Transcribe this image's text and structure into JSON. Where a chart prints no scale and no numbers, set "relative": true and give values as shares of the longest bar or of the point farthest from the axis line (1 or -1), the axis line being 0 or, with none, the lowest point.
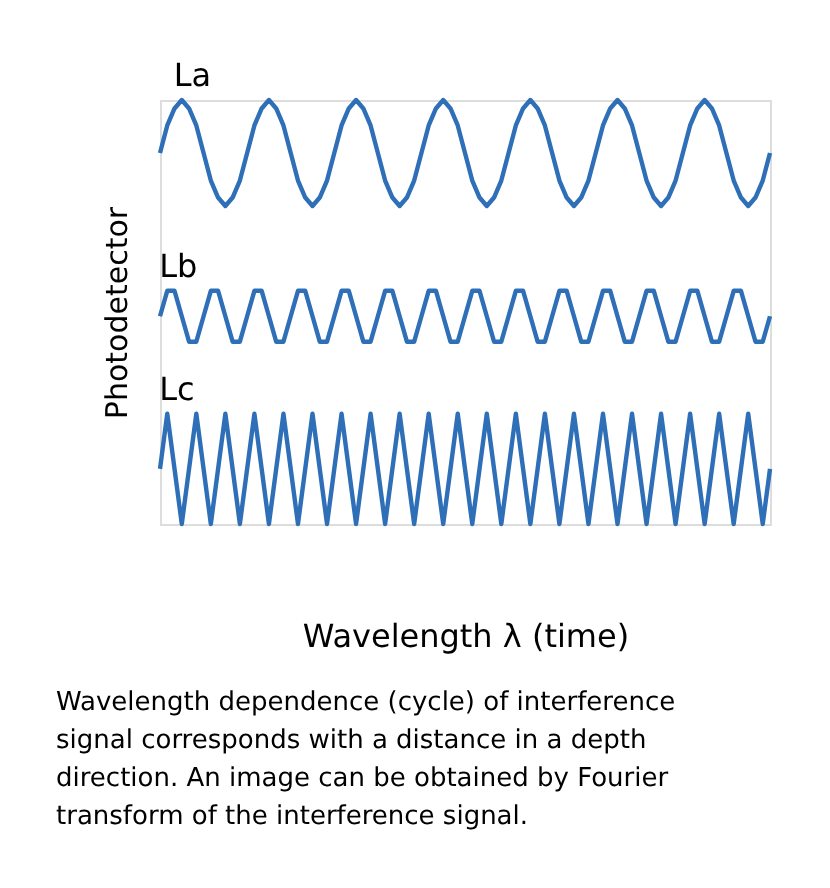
{
  "chart_data": {
    "type": "line",
    "relative": true,
    "tick_labels": false,
    "xlabel": "Wavelength λ (time)",
    "ylabel": "Photodetector",
    "annotations": [
      "Wavelength dependence (cycle) of interference signal corresponds with a distance in a depth direction. An image can be obtained by Fourier transform of the interference signal."
    ],
    "categories": [
      null,
      null,
      null,
      null,
      null,
      null,
      null,
      null,
      null,
      null,
      null,
      null,
      null,
      null,
      null,
      null,
      null,
      null,
      null,
      null,
      null,
      null,
      null,
      null,
      null,
      null,
      null,
      null,
      null,
      null,
      null,
      null,
      null,
      null,
      null,
      null,
      null,
      null,
      null,
      null,
      null,
      null,
      null,
      null,
      null,
      null,
      null,
      null,
      null,
      null,
      null,
      null,
      null,
      null,
      null,
      null,
      null,
      null,
      null,
      null,
      null,
      null,
      null,
      null,
      null,
      null,
      null,
      null,
      null,
      null,
      null,
      null,
      null,
      null,
      null,
      null,
      null,
      null,
      null,
      null,
      null,
      null,
      null,
      null,
      null
    ],
    "series": [
      {
        "name": "La",
        "color": "#2e6fb7",
        "values": [
          0.875,
          0.94,
          0.98,
          1,
          0.98,
          0.94,
          0.875,
          0.81,
          0.77,
          0.75,
          0.77,
          0.81,
          0.875,
          0.94,
          0.98,
          1,
          0.98,
          0.94,
          0.875,
          0.81,
          0.77,
          0.75,
          0.77,
          0.81,
          0.875,
          0.94,
          0.98,
          1,
          0.98,
          0.94,
          0.875,
          0.81,
          0.77,
          0.75,
          0.77,
          0.81,
          0.875,
          0.94,
          0.98,
          1,
          0.98,
          0.94,
          0.875,
          0.81,
          0.77,
          0.75,
          0.77,
          0.81,
          0.875,
          0.94,
          0.98,
          1,
          0.98,
          0.94,
          0.875,
          0.81,
          0.77,
          0.75,
          0.77,
          0.81,
          0.875,
          0.94,
          0.98,
          1,
          0.98,
          0.94,
          0.875,
          0.81,
          0.77,
          0.75,
          0.77,
          0.81,
          0.875,
          0.94,
          0.98,
          1,
          0.98,
          0.94,
          0.875,
          0.81,
          0.77,
          0.75,
          0.77,
          0.81,
          0.875
        ]
      },
      {
        "name": "Lb",
        "color": "#2e6fb7",
        "values": [
          0.49,
          0.55,
          0.55,
          0.49,
          0.43,
          0.43,
          0.49,
          0.55,
          0.55,
          0.49,
          0.43,
          0.43,
          0.49,
          0.55,
          0.55,
          0.49,
          0.43,
          0.43,
          0.49,
          0.55,
          0.55,
          0.49,
          0.43,
          0.43,
          0.49,
          0.55,
          0.55,
          0.49,
          0.43,
          0.43,
          0.49,
          0.55,
          0.55,
          0.49,
          0.43,
          0.43,
          0.49,
          0.55,
          0.55,
          0.49,
          0.43,
          0.43,
          0.49,
          0.55,
          0.55,
          0.49,
          0.43,
          0.43,
          0.49,
          0.55,
          0.55,
          0.49,
          0.43,
          0.43,
          0.49,
          0.55,
          0.55,
          0.49,
          0.43,
          0.43,
          0.49,
          0.55,
          0.55,
          0.49,
          0.43,
          0.43,
          0.49,
          0.55,
          0.55,
          0.49,
          0.43,
          0.43,
          0.49,
          0.55,
          0.55,
          0.49,
          0.43,
          0.43,
          0.49,
          0.55,
          0.55,
          0.49,
          0.43,
          0.43,
          0.49
        ]
      },
      {
        "name": "Lc",
        "color": "#2e6fb7",
        "values": [
          0.13,
          0.26,
          0.13,
          0,
          0.13,
          0.26,
          0.13,
          0,
          0.13,
          0.26,
          0.13,
          0,
          0.13,
          0.26,
          0.13,
          0,
          0.13,
          0.26,
          0.13,
          0,
          0.13,
          0.26,
          0.13,
          0,
          0.13,
          0.26,
          0.13,
          0,
          0.13,
          0.26,
          0.13,
          0,
          0.13,
          0.26,
          0.13,
          0,
          0.13,
          0.26,
          0.13,
          0,
          0.13,
          0.26,
          0.13,
          0,
          0.13,
          0.26,
          0.13,
          0,
          0.13,
          0.26,
          0.13,
          0,
          0.13,
          0.26,
          0.13,
          0,
          0.13,
          0.26,
          0.13,
          0,
          0.13,
          0.26,
          0.13,
          0,
          0.13,
          0.26,
          0.13,
          0,
          0.13,
          0.26,
          0.13,
          0,
          0.13,
          0.26,
          0.13,
          0,
          0.13,
          0.26,
          0.13,
          0,
          0.13,
          0.26,
          0.13,
          0,
          0.13
        ]
      }
    ]
  }
}
